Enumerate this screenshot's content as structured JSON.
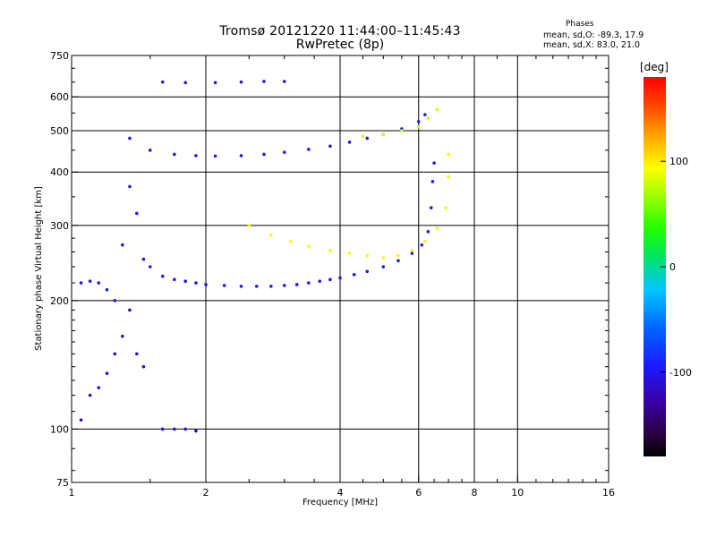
{
  "header": {
    "title_line1": "Tromsø 20121220 11:44:00–11:45:43",
    "title_line2": "RwPretec (8p)",
    "phases_title": "Phases",
    "phases_o": "mean, sd,O: -89.3, 17.9",
    "phases_x": "mean, sd,X:  83.0, 21.0"
  },
  "colorbar": {
    "unit_label": "[deg]",
    "ticks": [
      {
        "label": "100",
        "value": 100
      },
      {
        "label": "0",
        "value": 0
      },
      {
        "label": "-100",
        "value": -100
      }
    ],
    "range": [
      -180,
      180
    ]
  },
  "chart_data": {
    "type": "scatter",
    "xlabel": "Frequency [MHz]",
    "ylabel": "Stationary phase Virtual Height [km]",
    "xscale": "log",
    "yscale": "log",
    "xlim": [
      1,
      16
    ],
    "ylim": [
      75,
      750
    ],
    "grid": true,
    "xticks": [
      {
        "label": "1",
        "value": 1
      },
      {
        "label": "2",
        "value": 2
      },
      {
        "label": "4",
        "value": 4
      },
      {
        "label": "6",
        "value": 6
      },
      {
        "label": "8",
        "value": 8
      },
      {
        "label": "10",
        "value": 10
      },
      {
        "label": "16",
        "value": 16
      }
    ],
    "xgrid": [
      2,
      4,
      6,
      8,
      10
    ],
    "xminor": [
      1.5,
      2.5,
      3,
      3.5,
      4.5,
      5,
      5.5,
      6.5,
      7,
      7.5,
      9,
      11,
      12,
      13,
      14,
      15
    ],
    "yticks": [
      {
        "label": "75",
        "value": 75
      },
      {
        "label": "100",
        "value": 100
      },
      {
        "label": "200",
        "value": 200
      },
      {
        "label": "300",
        "value": 300
      },
      {
        "label": "400",
        "value": 400
      },
      {
        "label": "500",
        "value": 500
      },
      {
        "label": "600",
        "value": 600
      },
      {
        "label": "750",
        "value": 750
      }
    ],
    "ygrid": [
      100,
      200,
      300,
      400,
      500,
      600
    ],
    "yminor": [
      80,
      90,
      110,
      120,
      130,
      140,
      150,
      160,
      170,
      180,
      190,
      220,
      240,
      260,
      280,
      350,
      450,
      550,
      650,
      700
    ],
    "series": [
      {
        "phase": -100,
        "points": [
          [
            1.05,
            220
          ],
          [
            1.1,
            222
          ],
          [
            1.15,
            220
          ],
          [
            1.2,
            212
          ],
          [
            1.25,
            200
          ],
          [
            1.3,
            270
          ],
          [
            1.35,
            370
          ],
          [
            1.4,
            320
          ],
          [
            1.45,
            250
          ],
          [
            1.5,
            240
          ],
          [
            1.6,
            228
          ],
          [
            1.7,
            224
          ],
          [
            1.8,
            222
          ],
          [
            1.9,
            220
          ],
          [
            2.0,
            218
          ],
          [
            2.2,
            217
          ],
          [
            2.4,
            216
          ],
          [
            2.6,
            216
          ],
          [
            2.8,
            216
          ],
          [
            3.0,
            217
          ],
          [
            3.2,
            218
          ],
          [
            3.4,
            220
          ],
          [
            3.6,
            222
          ],
          [
            3.8,
            224
          ],
          [
            4.0,
            226
          ],
          [
            4.3,
            230
          ],
          [
            4.6,
            234
          ],
          [
            5.0,
            240
          ],
          [
            5.4,
            248
          ],
          [
            5.8,
            258
          ],
          [
            6.1,
            270
          ],
          [
            6.3,
            290
          ],
          [
            6.4,
            330
          ],
          [
            6.45,
            380
          ],
          [
            6.5,
            420
          ]
        ]
      },
      {
        "phase": -100,
        "points": [
          [
            1.35,
            480
          ],
          [
            1.5,
            450
          ],
          [
            1.7,
            440
          ],
          [
            1.9,
            437
          ],
          [
            2.1,
            436
          ],
          [
            2.4,
            437
          ],
          [
            2.7,
            440
          ],
          [
            3.0,
            445
          ],
          [
            3.4,
            452
          ],
          [
            3.8,
            460
          ],
          [
            4.2,
            470
          ],
          [
            4.6,
            480
          ],
          [
            5.0,
            490
          ],
          [
            5.5,
            505
          ],
          [
            6.0,
            525
          ],
          [
            6.2,
            545
          ]
        ]
      },
      {
        "phase": -110,
        "points": [
          [
            1.6,
            650
          ],
          [
            1.8,
            648
          ],
          [
            2.1,
            648
          ],
          [
            2.4,
            650
          ],
          [
            2.7,
            652
          ],
          [
            3.0,
            652
          ]
        ]
      },
      {
        "phase": -115,
        "points": [
          [
            1.05,
            105
          ],
          [
            1.1,
            120
          ],
          [
            1.15,
            125
          ],
          [
            1.2,
            135
          ],
          [
            1.25,
            150
          ],
          [
            1.3,
            165
          ],
          [
            1.35,
            190
          ],
          [
            1.4,
            150
          ],
          [
            1.45,
            140
          ]
        ]
      },
      {
        "phase": -110,
        "points": [
          [
            1.6,
            100
          ],
          [
            1.7,
            100
          ],
          [
            1.8,
            100
          ],
          [
            1.9,
            99
          ]
        ]
      },
      {
        "phase": 90,
        "points": [
          [
            2.5,
            300
          ],
          [
            2.8,
            285
          ],
          [
            3.1,
            275
          ],
          [
            3.4,
            268
          ],
          [
            3.8,
            262
          ],
          [
            4.2,
            258
          ],
          [
            4.6,
            255
          ],
          [
            5.0,
            252
          ],
          [
            5.4,
            255
          ],
          [
            5.8,
            262
          ],
          [
            6.2,
            275
          ],
          [
            6.6,
            295
          ],
          [
            6.9,
            330
          ],
          [
            7.0,
            390
          ],
          [
            7.0,
            440
          ]
        ]
      },
      {
        "phase": 80,
        "points": [
          [
            4.5,
            485
          ],
          [
            5.0,
            490
          ],
          [
            5.5,
            500
          ],
          [
            6.0,
            510
          ],
          [
            6.3,
            535
          ],
          [
            6.6,
            560
          ]
        ]
      }
    ]
  }
}
